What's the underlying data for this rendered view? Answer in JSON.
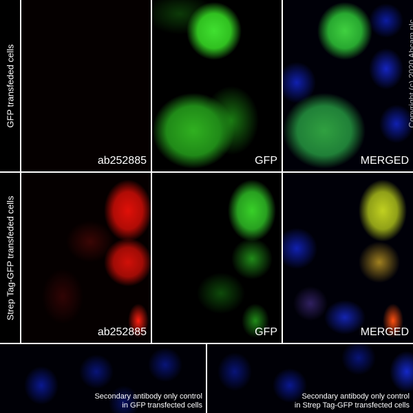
{
  "rows": [
    {
      "label": "GFP transfeded cells",
      "panels": [
        "ab252885",
        "GFP",
        "MERGED"
      ]
    },
    {
      "label": "Strep Tag-GFP transfeded cells",
      "panels": [
        "ab252885",
        "GFP",
        "MERGED"
      ]
    }
  ],
  "controls": [
    {
      "line1": "Secondary antibody only control",
      "line2": "in GFP transfected cells"
    },
    {
      "line1": "Secondary antibody only control",
      "line2": "in Strep Tag-GFP transfected cells"
    }
  ],
  "watermark": "Copyright (c) 2020 Abcam plc",
  "colors": {
    "red": "#ff1a10",
    "green": "#30e020",
    "blue": "#1020c0"
  }
}
